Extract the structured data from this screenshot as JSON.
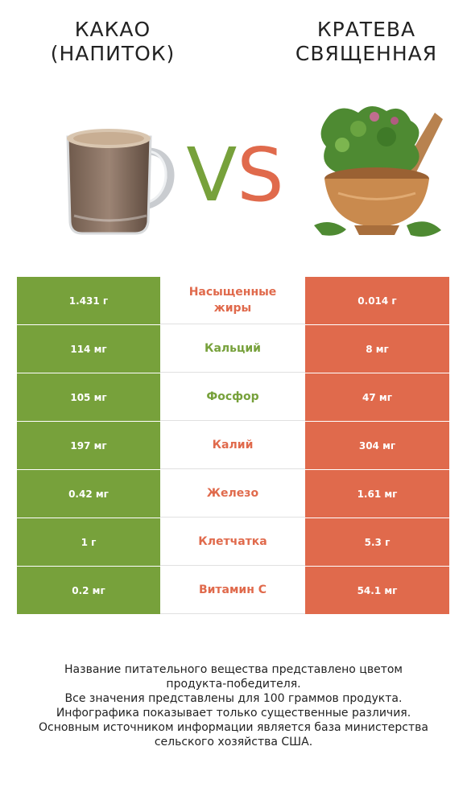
{
  "header": {
    "left_title": "КАКАО (НАПИТОК)",
    "right_title": "КРАТЕВА СВЯЩЕННАЯ",
    "vs_v": "V",
    "vs_s": "S"
  },
  "colors": {
    "green": "#77a13b",
    "red": "#e06a4c"
  },
  "rows": [
    {
      "left": "1.431 г",
      "label": "Насыщенные жиры",
      "right": "0.014 г",
      "winner": "red"
    },
    {
      "left": "114 мг",
      "label": "Кальций",
      "right": "8 мг",
      "winner": "green"
    },
    {
      "left": "105 мг",
      "label": "Фосфор",
      "right": "47 мг",
      "winner": "green"
    },
    {
      "left": "197 мг",
      "label": "Калий",
      "right": "304 мг",
      "winner": "red"
    },
    {
      "left": "0.42 мг",
      "label": "Железо",
      "right": "1.61 мг",
      "winner": "red"
    },
    {
      "left": "1 г",
      "label": "Клетчатка",
      "right": "5.3 г",
      "winner": "red"
    },
    {
      "left": "0.2 мг",
      "label": "Витамин C",
      "right": "54.1 мг",
      "winner": "red"
    }
  ],
  "footer": {
    "line1": "Название питательного вещества представлено цветом",
    "line2": "продукта-победителя.",
    "line3": "Все значения представлены для 100 граммов продукта.",
    "line4": "Инфографика показывает только существенные различия.",
    "line5": "Основным источником информации является база министерства",
    "line6": "сельского хозяйства США."
  }
}
